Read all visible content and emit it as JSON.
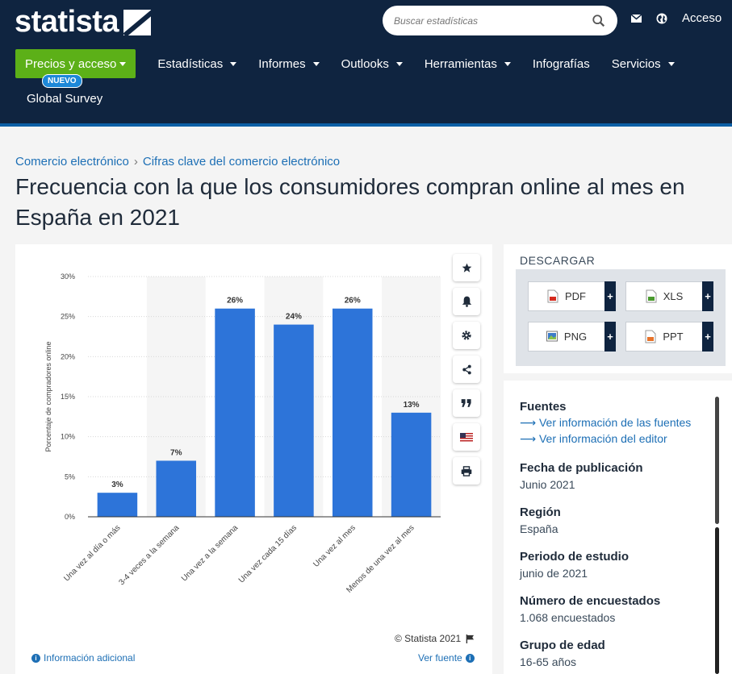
{
  "header": {
    "logo": "statista",
    "search_placeholder": "Buscar estadísticas",
    "access_label": "Acceso"
  },
  "nav": {
    "cta_label": "Precios y acceso",
    "badge": "NUEVO",
    "items": [
      "Estadísticas",
      "Informes",
      "Outlooks",
      "Herramientas",
      "Infografías",
      "Servicios"
    ],
    "global_survey": "Global Survey"
  },
  "breadcrumb": [
    "Comercio electrónico",
    "Cifras clave del comercio electrónico"
  ],
  "page_title": "Frecuencia con la que los consumidores compran online al mes en España en 2021",
  "chart_data": {
    "type": "bar",
    "categories": [
      "Una vez al día o más",
      "3-4 veces a la semana",
      "Una vez a la semana",
      "Una vez cada 15 días",
      "Una vez al mes",
      "Menos de una vez al mes"
    ],
    "values": [
      3,
      7,
      26,
      24,
      26,
      13
    ],
    "value_labels": [
      "3%",
      "7%",
      "26%",
      "24%",
      "26%",
      "13%"
    ],
    "ylabel": "Porcentaje de compradores online",
    "yticks": [
      "0%",
      "5%",
      "10%",
      "15%",
      "20%",
      "25%",
      "30%"
    ],
    "ylim": [
      0,
      30
    ],
    "bar_color": "#2d74d9",
    "grid": true,
    "title": ""
  },
  "chart_footer": {
    "copyright": "© Statista 2021",
    "info": "Información adicional",
    "source": "Ver fuente"
  },
  "tools": [
    "star-icon",
    "bell-icon",
    "gear-icon",
    "share-icon",
    "quote-icon",
    "flag-icon",
    "print-icon"
  ],
  "download": {
    "heading": "DESCARGAR",
    "buttons": [
      "PDF",
      "XLS",
      "PNG",
      "PPT"
    ]
  },
  "meta": {
    "sources_h": "Fuentes",
    "sources_link1": "Ver información de las fuentes",
    "sources_link2": "Ver información del editor",
    "pub_h": "Fecha de publicación",
    "pub_v": "Junio 2021",
    "region_h": "Región",
    "region_v": "España",
    "period_h": "Periodo de estudio",
    "period_v": "junio de 2021",
    "n_h": "Número de encuestados",
    "n_v": "1.068 encuestados",
    "age_h": "Grupo de edad",
    "age_v": "16-65 años"
  },
  "colors": {
    "header_bg": "#0f2440",
    "cta_green": "#5cb018",
    "link_blue": "#1d6fb5"
  }
}
